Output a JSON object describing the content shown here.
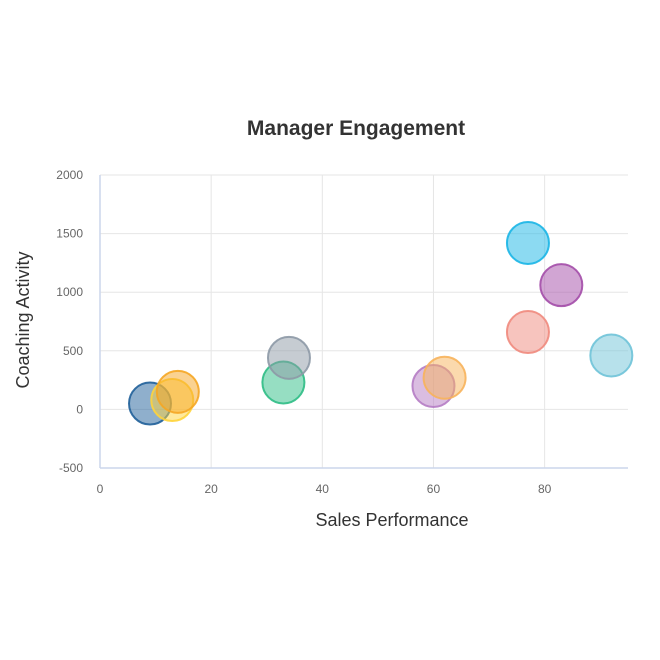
{
  "chart_data": {
    "type": "scatter",
    "title": "Manager Engagement",
    "xlabel": "Sales Performance",
    "ylabel": "Coaching Activity",
    "xlim": [
      0,
      95
    ],
    "ylim": [
      -500,
      2000
    ],
    "xticks": [
      "0",
      "20",
      "40",
      "60",
      "80"
    ],
    "yticks": [
      "-500",
      "0",
      "500",
      "1000",
      "1500",
      "2000"
    ],
    "grid": true,
    "legend": "none",
    "points": [
      {
        "x": 9,
        "y": 50,
        "color": "#1f5f99"
      },
      {
        "x": 13,
        "y": 80,
        "color": "#ffd43b"
      },
      {
        "x": 14,
        "y": 150,
        "color": "#f5a623"
      },
      {
        "x": 33,
        "y": 230,
        "color": "#2ebd85"
      },
      {
        "x": 34,
        "y": 440,
        "color": "#8d99a6"
      },
      {
        "x": 60,
        "y": 200,
        "color": "#b57cc4"
      },
      {
        "x": 62,
        "y": 270,
        "color": "#f7b35b"
      },
      {
        "x": 77,
        "y": 660,
        "color": "#f08a7d"
      },
      {
        "x": 77,
        "y": 1420,
        "color": "#1ab5e6"
      },
      {
        "x": 83,
        "y": 1060,
        "color": "#a34ca8"
      },
      {
        "x": 92,
        "y": 460,
        "color": "#6fc3d8"
      }
    ]
  }
}
